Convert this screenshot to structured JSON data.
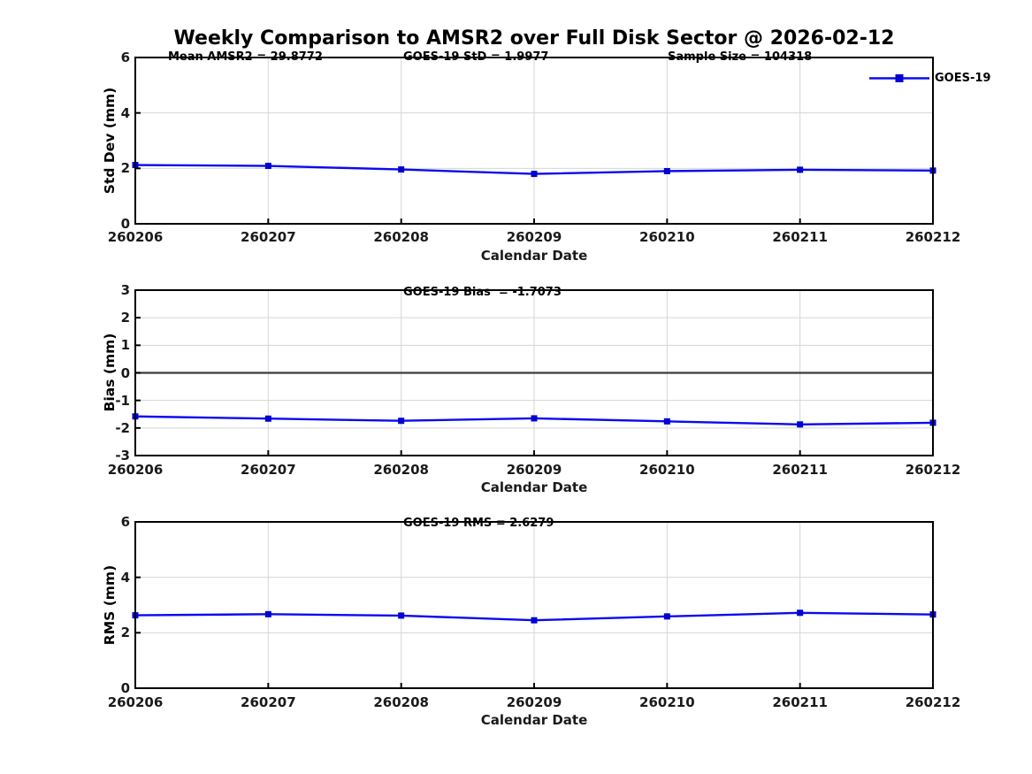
{
  "title": "Weekly Comparison to AMSR2 over Full Disk Sector @ 2026-02-12",
  "legend": {
    "label": "GOES-19"
  },
  "colors": {
    "line": "#0a0af0",
    "marker": "#0000d2",
    "grid": "#d6d6d6",
    "zero_line": "#3c3c3c",
    "axis": "#000000",
    "text": "#1a1a1a"
  },
  "chart_data": [
    {
      "type": "line",
      "name": "std-dev-vs-date",
      "annotations": [
        "Mean AMSR2 = 29.8772",
        "GOES-19 StD = 1.9977",
        "Sample Size = 104318"
      ],
      "ylabel": "Std Dev (mm)",
      "xlabel": "Calendar Date",
      "categories": [
        "260206",
        "260207",
        "260208",
        "260209",
        "260210",
        "260211",
        "260212"
      ],
      "series": [
        {
          "name": "GOES-19",
          "values": [
            2.12,
            2.09,
            1.96,
            1.8,
            1.9,
            1.95,
            1.92
          ]
        }
      ],
      "ylim": [
        0,
        6
      ],
      "yticks": [
        0,
        2,
        4,
        6
      ],
      "grid": true,
      "zero_line": false,
      "legend_position": "top-right-outside"
    },
    {
      "type": "line",
      "name": "bias-vs-date",
      "annotations": [
        "GOES-19 Bias  = -1.7073"
      ],
      "ylabel": "Bias (mm)",
      "xlabel": "Calendar Date",
      "categories": [
        "260206",
        "260207",
        "260208",
        "260209",
        "260210",
        "260211",
        "260212"
      ],
      "series": [
        {
          "name": "GOES-19",
          "values": [
            -1.58,
            -1.66,
            -1.74,
            -1.65,
            -1.76,
            -1.87,
            -1.81
          ]
        }
      ],
      "ylim": [
        -3,
        3
      ],
      "yticks": [
        -3,
        -2,
        -1,
        0,
        1,
        2,
        3
      ],
      "grid": true,
      "zero_line": true
    },
    {
      "type": "line",
      "name": "rms-vs-date",
      "annotations": [
        "GOES-19 RMS = 2.6279"
      ],
      "ylabel": "RMS (mm)",
      "xlabel": "Calendar Date",
      "categories": [
        "260206",
        "260207",
        "260208",
        "260209",
        "260210",
        "260211",
        "260212"
      ],
      "series": [
        {
          "name": "GOES-19",
          "values": [
            2.63,
            2.67,
            2.62,
            2.45,
            2.59,
            2.72,
            2.66
          ]
        }
      ],
      "ylim": [
        0,
        6
      ],
      "yticks": [
        0,
        2,
        4,
        6
      ],
      "grid": true,
      "zero_line": false
    }
  ]
}
